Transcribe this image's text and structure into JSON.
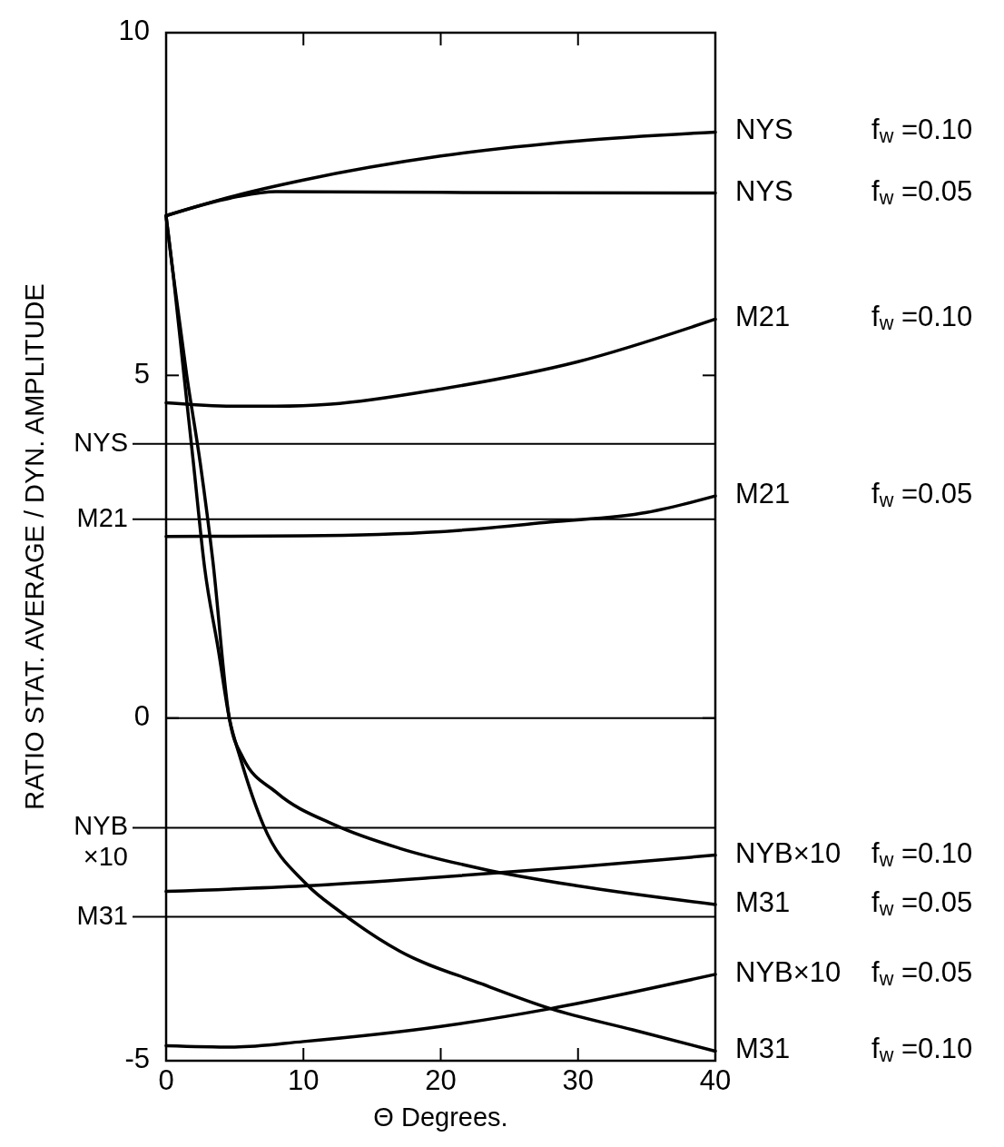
{
  "chart_data": {
    "type": "line",
    "xlabel": "Θ  Degrees.",
    "ylabel": "RATIO  STAT. AVERAGE / DYN. AMPLITUDE",
    "xlim": [
      0,
      40
    ],
    "ylim": [
      -5,
      10
    ],
    "xticks": [
      0,
      10,
      20,
      30,
      40
    ],
    "yticks": [
      -5,
      0,
      5,
      10
    ],
    "grid": false,
    "marker": "none",
    "line_style": "solid",
    "series": [
      {
        "name": "NYS f$_{w}$ =0.10",
        "color": "#000000",
        "x": [
          0,
          5,
          10,
          20,
          30,
          40
        ],
        "values": [
          7.33,
          7.62,
          7.85,
          8.2,
          8.42,
          8.55
        ]
      },
      {
        "name": "NYS f$_{w}$ =0.05",
        "color": "#000000",
        "x": [
          0,
          5,
          8,
          20,
          40
        ],
        "values": [
          7.33,
          7.6,
          7.68,
          7.67,
          7.66
        ]
      },
      {
        "name": "M21 f$_{w}$ =0.10",
        "color": "#000000",
        "x": [
          0,
          5,
          8,
          12,
          20,
          30,
          40
        ],
        "values": [
          4.6,
          4.55,
          4.55,
          4.58,
          4.8,
          5.2,
          5.82
        ]
      },
      {
        "name": "M21 f$_{w}$ =0.05",
        "color": "#000000",
        "x": [
          0,
          10,
          20,
          28,
          35,
          40
        ],
        "values": [
          2.65,
          2.66,
          2.72,
          2.86,
          3.0,
          3.24
        ]
      },
      {
        "name": "NYB×10 f$_{w}$ =0.10",
        "color": "#000000",
        "x": [
          0,
          10,
          20,
          30,
          40
        ],
        "values": [
          -2.53,
          -2.45,
          -2.32,
          -2.17,
          -2.0
        ]
      },
      {
        "name": "M31 f$_{w}$ =0.05",
        "color": "#000000",
        "x": [
          0,
          0.5,
          1.5,
          2.5,
          3.4,
          4.6,
          5.6,
          8,
          12.4,
          17,
          23,
          30,
          40
        ],
        "values": [
          7.32,
          6.5,
          5,
          3.7,
          2.3,
          0,
          -0.58,
          -1.08,
          -1.57,
          -1.9,
          -2.2,
          -2.45,
          -2.72
        ]
      },
      {
        "name": "NYB×10 f$_{w}$ =0.05",
        "color": "#000000",
        "x": [
          0,
          5,
          10,
          20,
          28,
          34,
          40
        ],
        "values": [
          -4.78,
          -4.8,
          -4.72,
          -4.5,
          -4.24,
          -4.0,
          -3.74
        ]
      },
      {
        "name": "M31 f$_{w}$ =0.10",
        "color": "#000000",
        "x": [
          0,
          0.5,
          1.3,
          2.0,
          2.8,
          3.8,
          4.6,
          5.4,
          7.1,
          10.2,
          12.7,
          17,
          23,
          28,
          34,
          40
        ],
        "values": [
          7.32,
          6.5,
          5,
          3.7,
          2.2,
          1.0,
          0,
          -0.58,
          -1.57,
          -2.42,
          -2.83,
          -3.4,
          -3.88,
          -4.24,
          -4.55,
          -4.86
        ]
      }
    ],
    "ref_lines": [
      {
        "axis": "y",
        "value": 0,
        "color": "#000000"
      },
      {
        "axis": "y",
        "value": 4.0,
        "label": "NYS",
        "color": "#000000"
      },
      {
        "axis": "y",
        "value": 2.9,
        "label": "M21",
        "color": "#000000"
      },
      {
        "axis": "y",
        "value": -1.6,
        "label": "NYB ×10",
        "color": "#000000"
      },
      {
        "axis": "y",
        "value": -2.9,
        "label": "M31",
        "color": "#000000"
      }
    ]
  }
}
